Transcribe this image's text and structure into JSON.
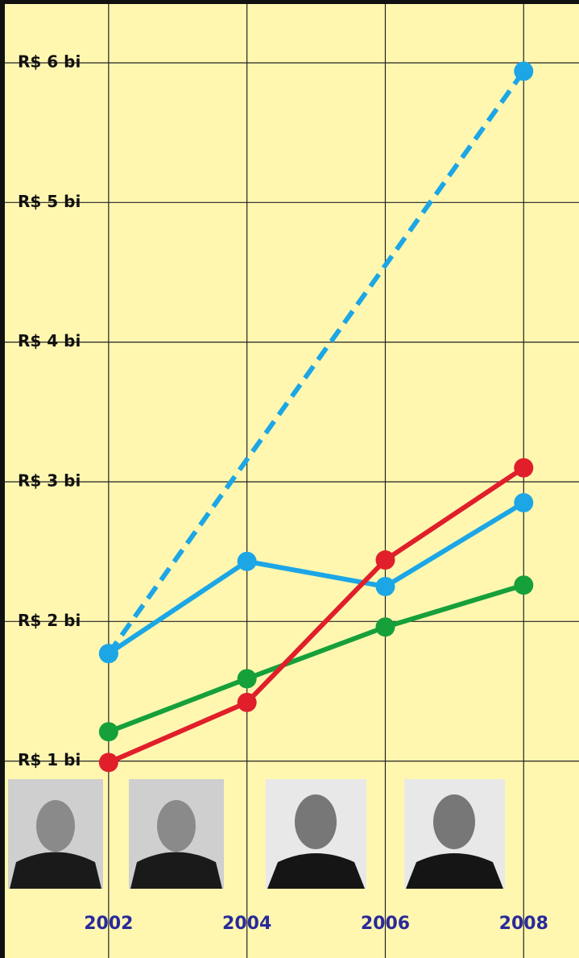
{
  "chart_data": {
    "type": "line",
    "x": [
      2002,
      2004,
      2006,
      2008
    ],
    "xlim": [
      2000.43,
      2008.8
    ],
    "xticks": [
      2002,
      2004,
      2006,
      2008
    ],
    "ylim": [
      -0.41,
      6.45
    ],
    "yticks": [
      {
        "value": 1,
        "label": "R$ 1 bi"
      },
      {
        "value": 2,
        "label": "R$ 2 bi"
      },
      {
        "value": 3,
        "label": "R$ 3 bi"
      },
      {
        "value": 4,
        "label": "R$ 4 bi"
      },
      {
        "value": 5,
        "label": "R$ 5 bi"
      },
      {
        "value": 6,
        "label": "R$ 6 bi"
      }
    ],
    "grid": true,
    "series": [
      {
        "color": "#1ca6e6",
        "dashed": true,
        "x": [
          2002,
          2008
        ],
        "values": [
          1.77,
          5.94
        ]
      },
      {
        "color": "#1ca6e6",
        "values": [
          1.77,
          2.43,
          2.25,
          2.85
        ]
      },
      {
        "color": "#16a03a",
        "values": [
          1.21,
          1.59,
          1.96,
          2.26
        ]
      },
      {
        "color": "#e01f2b",
        "values": [
          0.99,
          1.42,
          2.44,
          3.1
        ]
      }
    ]
  }
}
